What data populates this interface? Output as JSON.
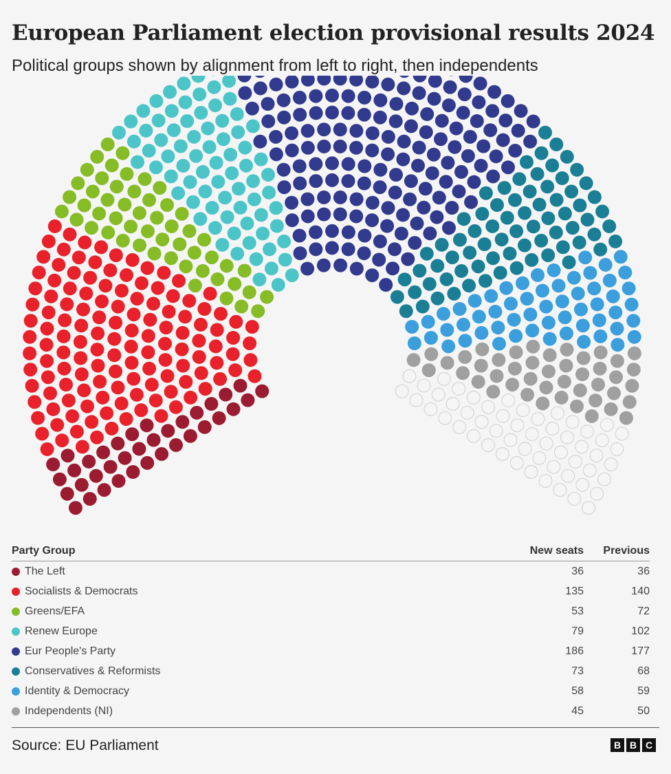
{
  "title": "European Parliament election provisional results 2024",
  "subtitle": "Political groups shown by alignment from left to right, then independents",
  "table": {
    "col_party": "Party Group",
    "col_new": "New seats",
    "col_prev": "Previous"
  },
  "chart_data": {
    "type": "hemicycle",
    "title": "European Parliament election provisional results 2024",
    "series": [
      {
        "name": "The Left",
        "new_seats": 36,
        "previous": 36,
        "color": "#9b1b30"
      },
      {
        "name": "Socialists & Democrats",
        "new_seats": 135,
        "previous": 140,
        "color": "#e8212b"
      },
      {
        "name": "Greens/EFA",
        "new_seats": 53,
        "previous": 72,
        "color": "#86bc25"
      },
      {
        "name": "Renew Europe",
        "new_seats": 79,
        "previous": 102,
        "color": "#4cc5c9"
      },
      {
        "name": "Eur People's Party",
        "new_seats": 186,
        "previous": 177,
        "color": "#323a8e"
      },
      {
        "name": "Conservatives & Reformists",
        "new_seats": 73,
        "previous": 68,
        "color": "#1a7f95"
      },
      {
        "name": "Identity & Democracy",
        "new_seats": 58,
        "previous": 59,
        "color": "#3a9fdc"
      },
      {
        "name": "Independents (NI)",
        "new_seats": 45,
        "previous": 50,
        "color": "#a0a0a0"
      }
    ],
    "unallocated_seats": 55,
    "total_seats": 720
  },
  "source": "Source: EU Parliament",
  "logo": [
    "B",
    "B",
    "C"
  ]
}
